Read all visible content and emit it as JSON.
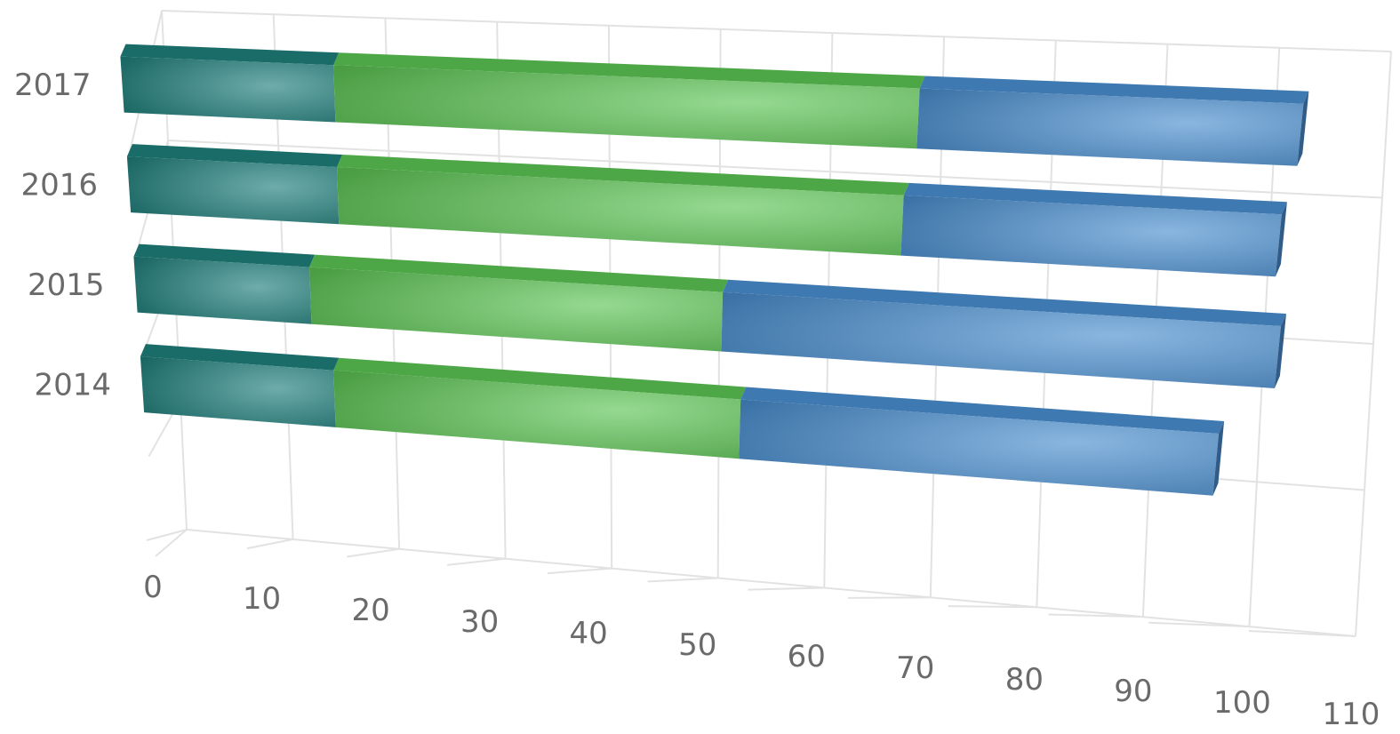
{
  "chart_data": {
    "type": "bar",
    "orientation": "horizontal",
    "stacked": true,
    "style": "3d",
    "categories": [
      "2017",
      "2016",
      "2015",
      "2014"
    ],
    "series": [
      {
        "color": "#1f7f7c",
        "values": [
          20,
          20,
          17,
          19
        ]
      },
      {
        "color": "#5cc454",
        "values": [
          55,
          54,
          40,
          40
        ]
      },
      {
        "color": "#4a8ed0",
        "values": [
          36,
          36,
          54,
          47
        ]
      }
    ],
    "x_ticks": [
      "0",
      "10",
      "20",
      "30",
      "40",
      "50",
      "60",
      "70",
      "80",
      "90",
      "100",
      "110"
    ],
    "xlim": [
      0,
      110
    ],
    "grid": true,
    "legend": "none",
    "title": "",
    "xlabel": "",
    "ylabel": ""
  }
}
